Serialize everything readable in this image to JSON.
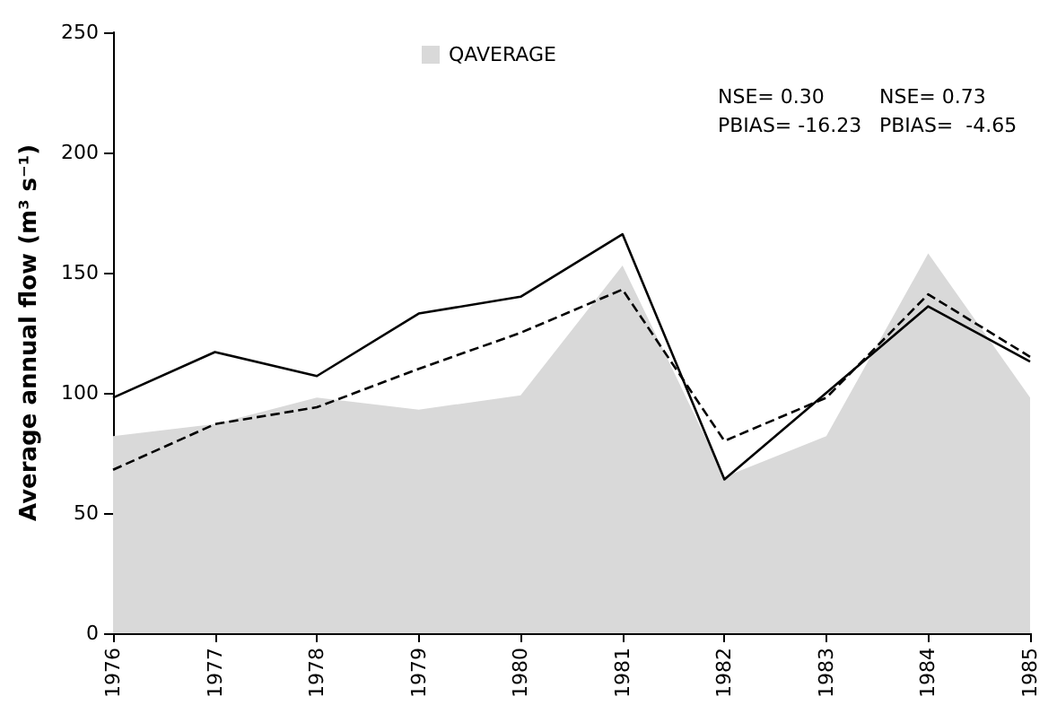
{
  "chart_data": {
    "type": "line",
    "ylabel": "Average annual flow (m³ s⁻¹)",
    "categories": [
      "1976",
      "1977",
      "1978",
      "1979",
      "1980",
      "1981",
      "1982",
      "1983",
      "1984",
      "1985"
    ],
    "series": [
      {
        "name": "QAVERAGE",
        "type": "area",
        "color": "#d9d9d9",
        "values": [
          82,
          87,
          98,
          93,
          99,
          153,
          65,
          82,
          158,
          98
        ]
      },
      {
        "color": "#000000",
        "line_style": "solid",
        "values": [
          98,
          117,
          107,
          133,
          140,
          166,
          64,
          100,
          136,
          113
        ]
      },
      {
        "color": "#000000",
        "line_style": "dashed",
        "values": [
          68,
          87,
          94,
          110,
          125,
          143,
          80,
          98,
          141,
          115
        ]
      }
    ],
    "annotations": [
      "NSE= 0.30\nPBIAS= -16.23",
      "NSE= 0.73\nPBIAS=  -4.65"
    ],
    "ylim": [
      0,
      250
    ],
    "yticks": [
      0,
      50,
      100,
      150,
      200,
      250
    ],
    "grid": false,
    "legend": "top",
    "marker": "none"
  }
}
